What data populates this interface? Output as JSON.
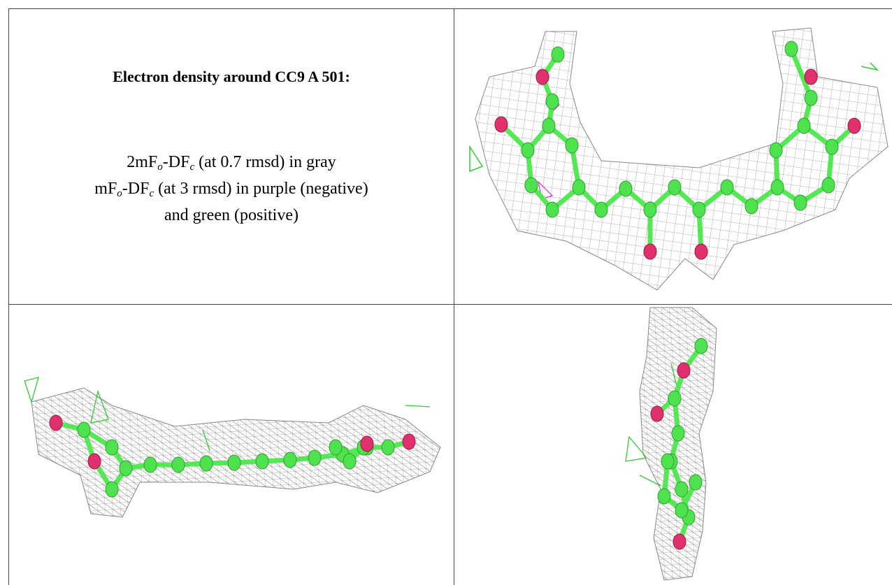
{
  "caption": {
    "title": "Electron density around CC9 A 501:",
    "lines": [
      [
        "2mF",
        "o",
        "-DF",
        "c",
        " (at 0.7 rmsd) in gray"
      ],
      [
        "mF",
        "o",
        "-DF",
        "c",
        " (at 3 rmsd) in purple (negative)"
      ],
      [
        "and green (positive)"
      ]
    ]
  }
}
